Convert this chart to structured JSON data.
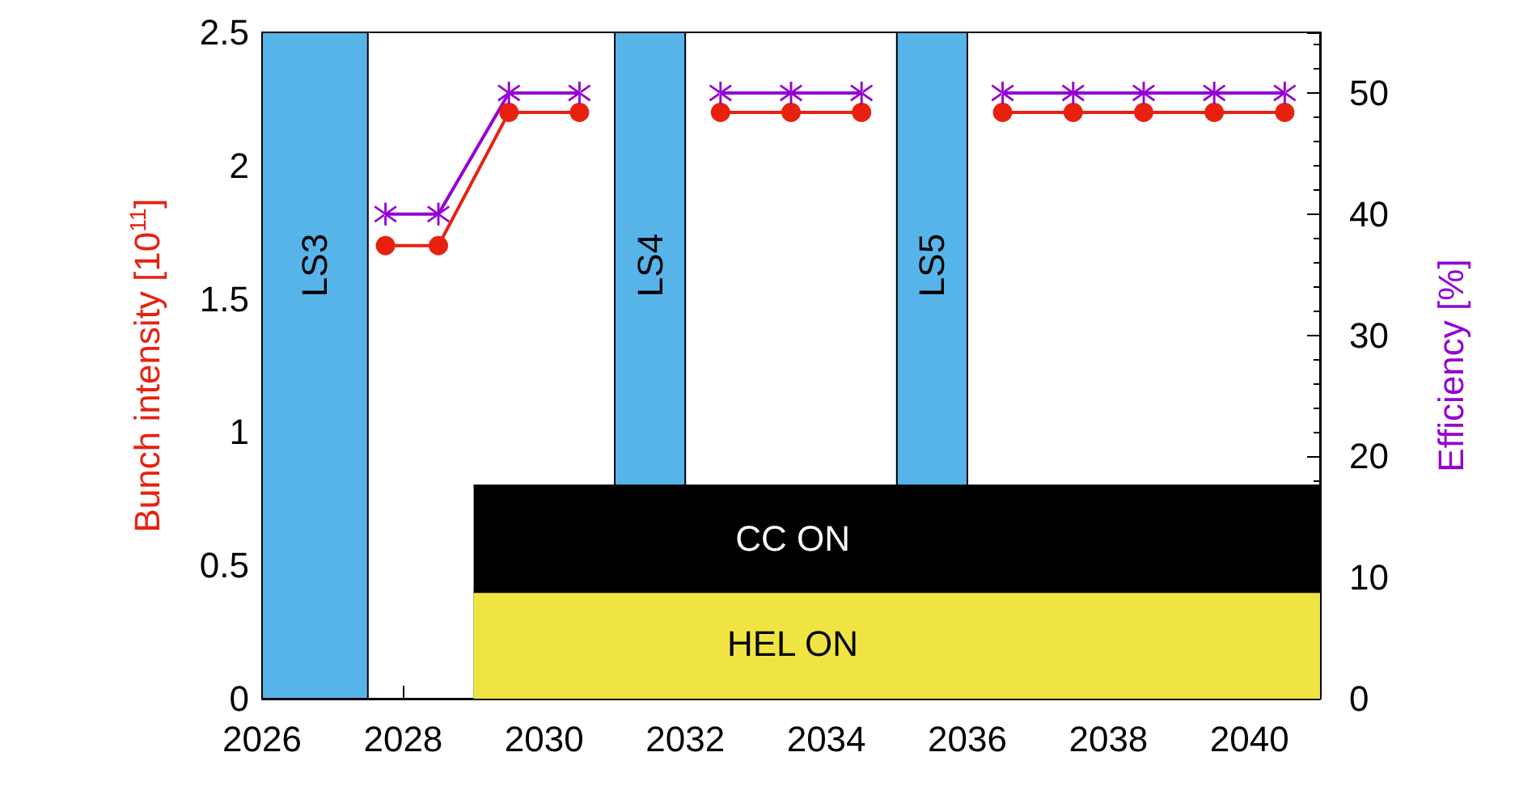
{
  "chart_data": {
    "type": "line",
    "ylabel": "Bunch intensity [10$^{11}$]",
    "y2label": "Efficiency [%]",
    "xlim": [
      2026,
      2041
    ],
    "xticks": [
      2026,
      2028,
      2030,
      2032,
      2034,
      2036,
      2038,
      2040
    ],
    "ylim": [
      0,
      2.5
    ],
    "yticks": [
      0,
      0.5,
      1,
      1.5,
      2,
      2.5
    ],
    "y2lim": [
      0,
      55
    ],
    "y2ticks": [
      0,
      10,
      20,
      30,
      40,
      50
    ],
    "grid": false,
    "series": [
      {
        "type": "area",
        "color": "#000000",
        "x": [
          2029,
          2041
        ],
        "values": [
          0.8,
          0.8
        ]
      },
      {
        "type": "area",
        "color": "#f0e442",
        "x": [
          2029,
          2041
        ],
        "values": [
          0.4,
          0.4
        ]
      },
      {
        "color": "#e8210f",
        "marker": "circle",
        "x": [
          2027.75,
          2028.5,
          2029.5,
          2030.5,
          2031.5,
          2032.5,
          2033.5,
          2034.5,
          2035.5,
          2036.5,
          2037.5,
          2038.5,
          2039.5,
          2040.5
        ],
        "values": [
          1.7,
          1.7,
          2.2,
          2.2,
          null,
          2.2,
          2.2,
          2.2,
          null,
          2.2,
          2.2,
          2.2,
          2.2,
          2.2
        ]
      },
      {
        "axis": "y2",
        "color": "#9400d3",
        "marker": "cross",
        "x": [
          2027.75,
          2028.5,
          2029.5,
          2030.5,
          2031.5,
          2032.5,
          2033.5,
          2034.5,
          2035.5,
          2036.5,
          2037.5,
          2038.5,
          2039.5,
          2040.5
        ],
        "values": [
          40,
          40,
          50,
          50,
          null,
          50,
          50,
          50,
          null,
          50,
          50,
          50,
          50,
          50
        ]
      }
    ],
    "bands": [
      {
        "axis": "x",
        "from": 2026,
        "to": 2027.5,
        "label": "LS3",
        "color": "#56b4e9"
      },
      {
        "axis": "x",
        "from": 2031,
        "to": 2032,
        "label": "LS4",
        "color": "#56b4e9"
      },
      {
        "axis": "x",
        "from": 2035,
        "to": 2036,
        "label": "LS5",
        "color": "#56b4e9"
      }
    ],
    "annotations": [
      "CC ON",
      "HEL ON"
    ]
  }
}
